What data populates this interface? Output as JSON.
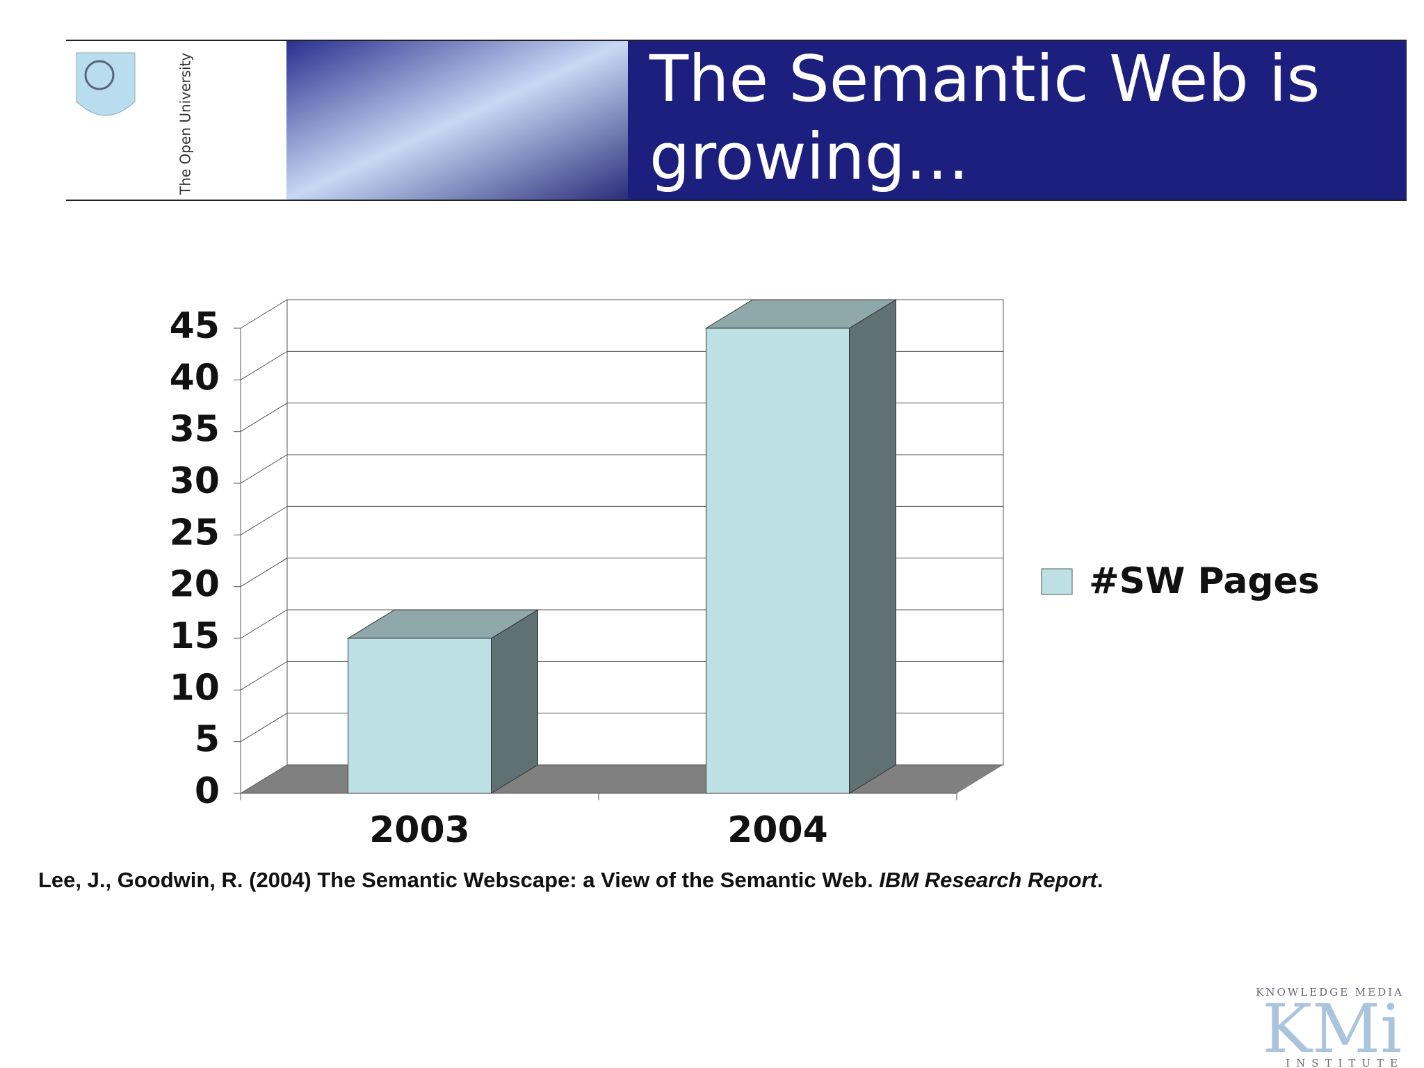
{
  "header": {
    "title": "The Semantic Web is growing…",
    "logo_text": "The Open University"
  },
  "chart_data": {
    "type": "bar3d",
    "categories": [
      "2003",
      "2004"
    ],
    "series": [
      {
        "name": "#SW Pages",
        "color": "#bde0e4",
        "values": [
          15,
          45
        ]
      }
    ],
    "ylim": [
      0,
      45
    ],
    "yticks": [
      0,
      5,
      10,
      15,
      20,
      25,
      30,
      35,
      40,
      45
    ],
    "grid": true,
    "legend": "right"
  },
  "citation": {
    "text": "Lee, J., Goodwin, R. (2004) The Semantic Webscape: a View of the Semantic Web. ",
    "source": "IBM Research Report",
    "end": "."
  },
  "footer_logo": {
    "top": "KNOWLEDGE MEDIA",
    "main": "KMi",
    "bottom": "INSTITUTE"
  }
}
